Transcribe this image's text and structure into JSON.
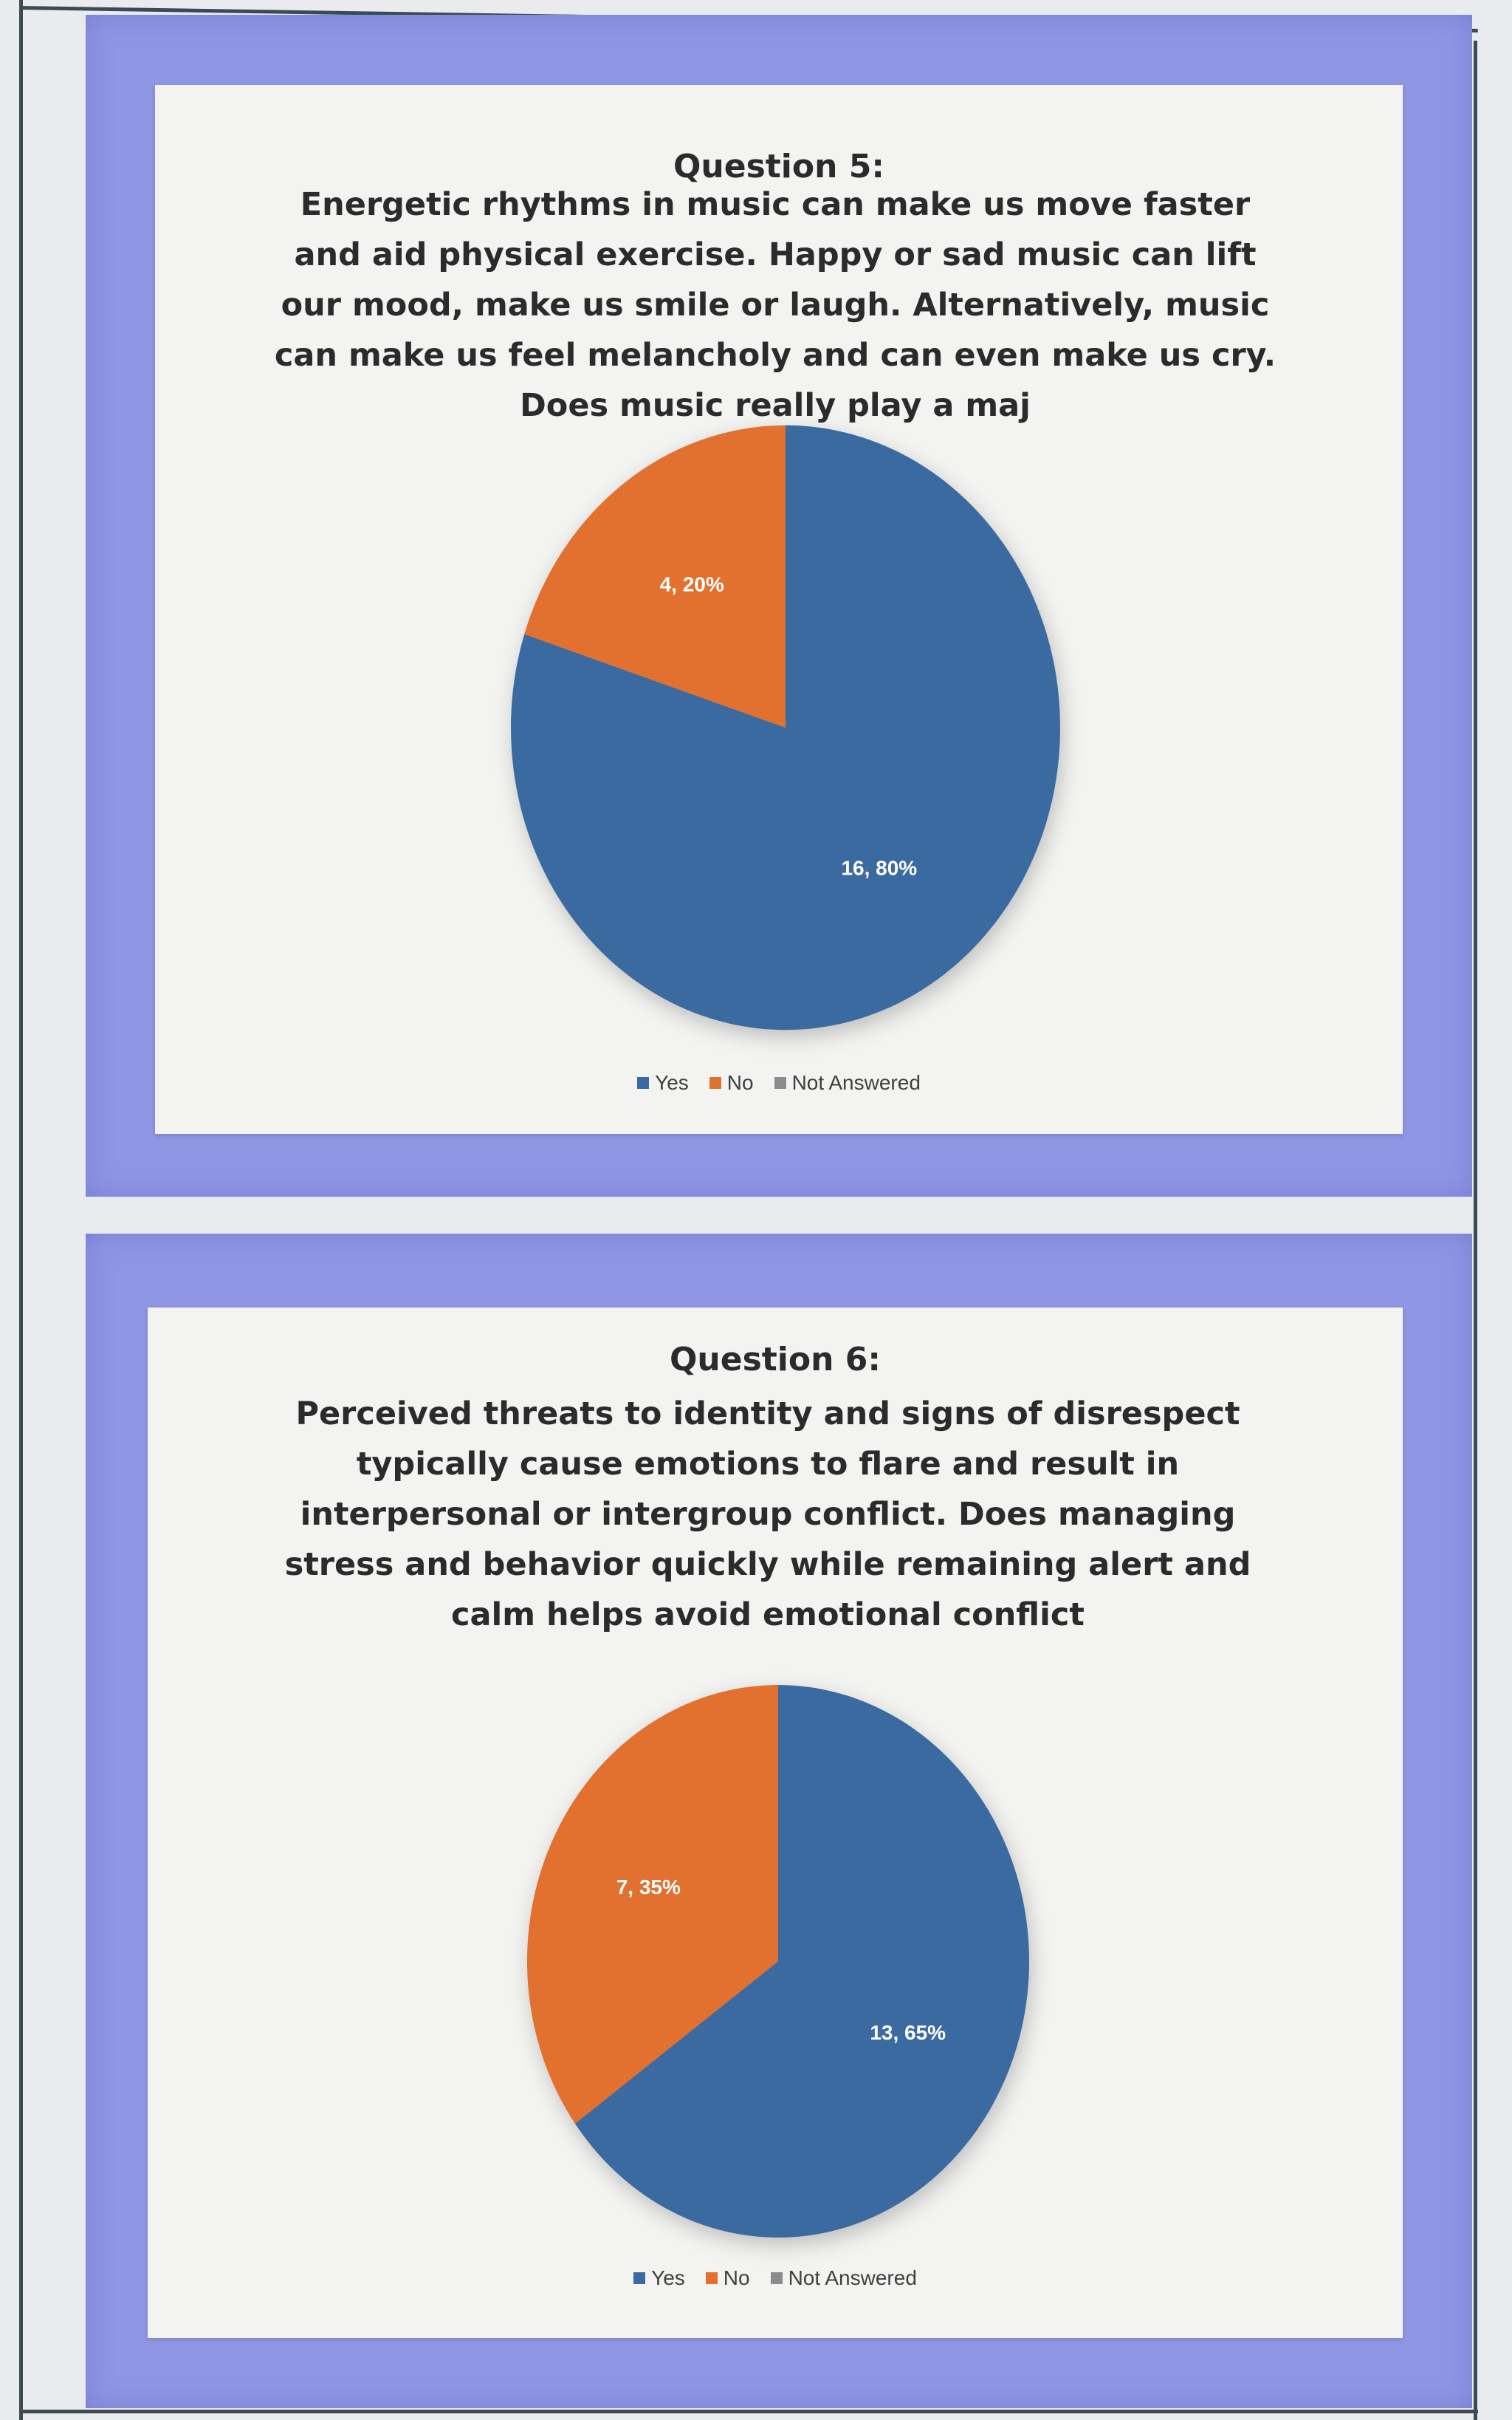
{
  "chart_data": [
    {
      "type": "pie",
      "title": "Question 5:",
      "subtitle": "Energetic rhythms in music can make us move faster and aid physical exercise. Happy or sad music can lift our mood, make us smile or laugh. Alternatively, music can make us feel melancholy and can even make us cry. Does music really play a maj",
      "categories": [
        "Yes",
        "No",
        "Not Answered"
      ],
      "values": [
        16,
        4,
        0
      ],
      "data_labels": [
        "16, 80%",
        "4, 20%",
        ""
      ],
      "colors": [
        "#3b6aa0",
        "#e2702f",
        "#8c8c8c"
      ],
      "legend_position": "bottom"
    },
    {
      "type": "pie",
      "title": "Question 6:",
      "subtitle": "Perceived threats to identity and signs of disrespect typically cause emotions to flare and result in interpersonal or intergroup conflict. Does managing stress and behavior quickly while remaining alert and calm helps avoid emotional conflict",
      "categories": [
        "Yes",
        "No",
        "Not Answered"
      ],
      "values": [
        13,
        7,
        0
      ],
      "data_labels": [
        "13, 65%",
        "7, 35%",
        ""
      ],
      "colors": [
        "#3b6aa0",
        "#e2702f",
        "#8c8c8c"
      ],
      "legend_position": "bottom"
    }
  ]
}
